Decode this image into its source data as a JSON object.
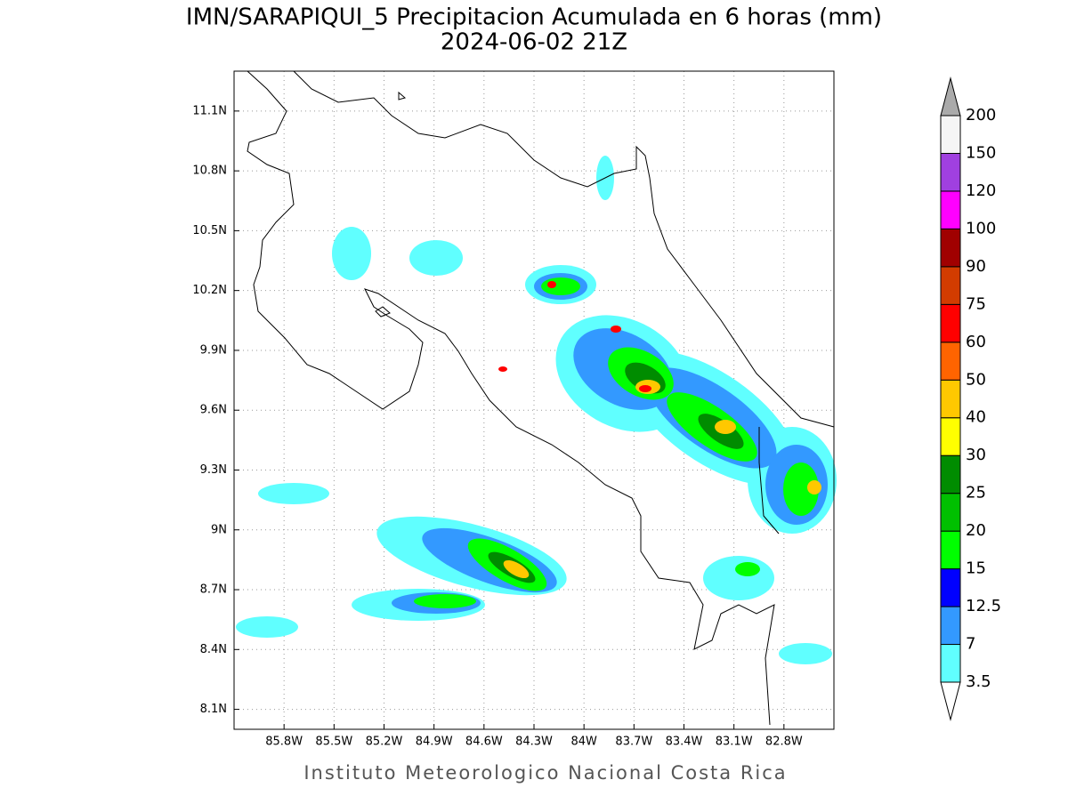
{
  "map": {
    "title": "IMN/SARAPIQUI_5 Precipitacion Acumulada en 6 horas (mm)",
    "subtitle": "2024-06-02 21Z",
    "footer": "Instituto Meteorologico Nacional Costa Rica",
    "xlim": [
      -86.1,
      -82.5
    ],
    "ylim": [
      8.0,
      11.3
    ],
    "xticks": [
      {
        "value": -85.8,
        "label": "85.8W"
      },
      {
        "value": -85.5,
        "label": "85.5W"
      },
      {
        "value": -85.2,
        "label": "85.2W"
      },
      {
        "value": -84.9,
        "label": "84.9W"
      },
      {
        "value": -84.6,
        "label": "84.6W"
      },
      {
        "value": -84.3,
        "label": "84.3W"
      },
      {
        "value": -84.0,
        "label": "84W"
      },
      {
        "value": -83.7,
        "label": "83.7W"
      },
      {
        "value": -83.4,
        "label": "83.4W"
      },
      {
        "value": -83.1,
        "label": "83.1W"
      },
      {
        "value": -82.8,
        "label": "82.8W"
      }
    ],
    "yticks": [
      {
        "value": 8.1,
        "label": "8.1N"
      },
      {
        "value": 8.4,
        "label": "8.4N"
      },
      {
        "value": 8.7,
        "label": "8.7N"
      },
      {
        "value": 9.0,
        "label": "9N"
      },
      {
        "value": 9.3,
        "label": "9.3N"
      },
      {
        "value": 9.6,
        "label": "9.6N"
      },
      {
        "value": 9.9,
        "label": "9.9N"
      },
      {
        "value": 10.2,
        "label": "10.2N"
      },
      {
        "value": 10.5,
        "label": "10.5N"
      },
      {
        "value": 10.8,
        "label": "10.8N"
      },
      {
        "value": 11.1,
        "label": "11.1N"
      }
    ],
    "grid": true,
    "colorbar": {
      "levels": [
        3.5,
        7,
        12.5,
        15,
        20,
        25,
        30,
        40,
        50,
        60,
        75,
        90,
        100,
        120,
        150,
        200
      ],
      "colors": [
        "#60ffff",
        "#3399ff",
        "#0000ff",
        "#00ff00",
        "#00c000",
        "#008c00",
        "#ffff00",
        "#ffc800",
        "#ff6400",
        "#ff0000",
        "#d23c00",
        "#a00000",
        "#ff00ff",
        "#a040e0",
        "#f5f5f5"
      ],
      "under_color": "#ffffff",
      "over_color": "#aaaaaa"
    }
  }
}
